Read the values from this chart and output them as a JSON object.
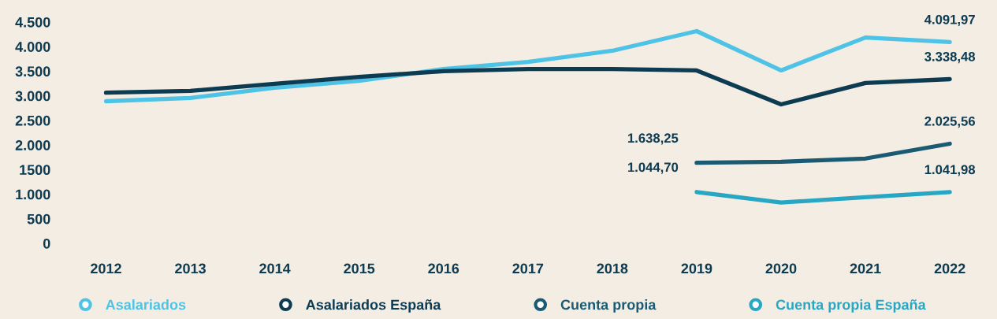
{
  "chart_data": {
    "type": "line",
    "categories": [
      "2012",
      "2013",
      "2014",
      "2015",
      "2016",
      "2017",
      "2018",
      "2019",
      "2020",
      "2021",
      "2022"
    ],
    "series": [
      {
        "name": "Asalariados",
        "color": "#4ec3e6",
        "values": [
          2890,
          2955,
          3165,
          3305,
          3545,
          3690,
          3915,
          4315,
          3515,
          4185,
          4091.97
        ],
        "value_labels": [
          null,
          null,
          null,
          null,
          null,
          null,
          null,
          null,
          null,
          null,
          "4.091,97"
        ]
      },
      {
        "name": "Asalariados España",
        "color": "#0d3b52",
        "values": [
          3065,
          3100,
          3245,
          3385,
          3500,
          3545,
          3545,
          3515,
          2825,
          3260,
          3338.48
        ],
        "value_labels": [
          null,
          null,
          null,
          null,
          null,
          null,
          null,
          null,
          null,
          null,
          "3.338,48"
        ]
      },
      {
        "name": "Cuenta propia",
        "color": "#1a5a73",
        "values": [
          null,
          null,
          null,
          null,
          null,
          null,
          null,
          1638.25,
          1660,
          1725,
          2025.56
        ],
        "value_labels": [
          null,
          null,
          null,
          null,
          null,
          null,
          null,
          "1.638,25",
          null,
          null,
          "2.025,56"
        ]
      },
      {
        "name": "Cuenta propia España",
        "color": "#27a7c4",
        "values": [
          null,
          null,
          null,
          null,
          null,
          null,
          null,
          1044.7,
          830,
          940,
          1041.98
        ],
        "value_labels": [
          null,
          null,
          null,
          null,
          null,
          null,
          null,
          "1.044,70",
          null,
          null,
          "1.041,98"
        ]
      }
    ],
    "ylim": [
      0,
      4500
    ],
    "yticks": [
      {
        "value": 0,
        "label": "0"
      },
      {
        "value": 500,
        "label": "500"
      },
      {
        "value": 1000,
        "label": "1.000"
      },
      {
        "value": 1500,
        "label": "1500"
      },
      {
        "value": 2000,
        "label": "2.000"
      },
      {
        "value": 2500,
        "label": "2.500"
      },
      {
        "value": 3000,
        "label": "3.000"
      },
      {
        "value": 3500,
        "label": "3.500"
      },
      {
        "value": 4000,
        "label": "4.000"
      },
      {
        "value": 4500,
        "label": "4.500"
      }
    ],
    "grid": false,
    "legend": "bottom"
  }
}
